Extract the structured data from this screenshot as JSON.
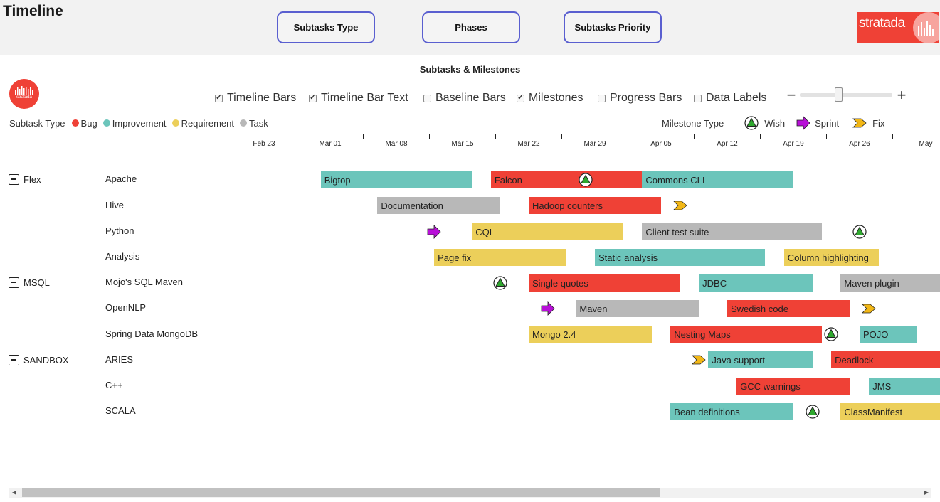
{
  "header": {
    "title": "Timeline",
    "buttons": [
      "Subtasks Type",
      "Phases",
      "Subtasks Priority"
    ],
    "brand": "stratada"
  },
  "chart_title": "Subtasks & Milestones",
  "small_logo_text": "stratada",
  "options": [
    {
      "label": "Timeline Bars",
      "checked": true
    },
    {
      "label": "Timeline Bar Text",
      "checked": true
    },
    {
      "label": "Baseline Bars",
      "checked": false
    },
    {
      "label": "Milestones",
      "checked": true
    },
    {
      "label": "Progress Bars",
      "checked": false
    },
    {
      "label": "Data Labels",
      "checked": false
    }
  ],
  "zoom": {
    "minus": "−",
    "plus": "+",
    "level": 0.43
  },
  "legend": {
    "title": "Subtask Type",
    "items": [
      {
        "label": "Bug",
        "color": "#ef4136"
      },
      {
        "label": "Improvement",
        "color": "#6cc5bb"
      },
      {
        "label": "Requirement",
        "color": "#eccf5a"
      },
      {
        "label": "Task",
        "color": "#b8b8b8"
      }
    ]
  },
  "milestone_legend": {
    "title": "Milestone Type",
    "items": [
      {
        "label": "Wish",
        "icon": "wish-triangle-icon"
      },
      {
        "label": "Sprint",
        "icon": "sprint-arrow-icon"
      },
      {
        "label": "Fix",
        "icon": "fix-chevron-icon"
      }
    ]
  },
  "colors": {
    "Bug": "#ef4136",
    "Improvement": "#6cc5bb",
    "Requirement": "#eccf5a",
    "Task": "#b8b8b8"
  },
  "axis": {
    "ticks": [
      "Feb 23",
      "Mar 01",
      "Mar 08",
      "Mar 15",
      "Mar 22",
      "Mar 29",
      "Apr 05",
      "Apr 12",
      "Apr 19",
      "Apr 26",
      "May"
    ]
  },
  "groups": [
    {
      "label": "Flex",
      "row": 0
    },
    {
      "label": "MSQL",
      "row": 4
    },
    {
      "label": "SANDBOX",
      "row": 7
    }
  ],
  "rows": [
    "Apache",
    "Hive",
    "Python",
    "Analysis",
    "Mojo's SQL Maven",
    "OpenNLP",
    "Spring Data MongoDB",
    "ARIES",
    "C++",
    "SCALA"
  ],
  "tasks": [
    {
      "row": 0,
      "label": "Bigtop",
      "type": "Improvement",
      "start": "Feb 29",
      "end": "Mar 16"
    },
    {
      "row": 0,
      "label": "Falcon",
      "type": "Bug",
      "start": "Mar 18",
      "end": "Apr 03"
    },
    {
      "row": 0,
      "label": "Commons CLI",
      "type": "Improvement",
      "start": "Apr 03",
      "end": "Apr 19"
    },
    {
      "row": 1,
      "label": "Documentation",
      "type": "Task",
      "start": "Mar 06",
      "end": "Mar 19"
    },
    {
      "row": 1,
      "label": "Hadoop counters",
      "type": "Bug",
      "start": "Mar 22",
      "end": "Apr 05"
    },
    {
      "row": 2,
      "label": "CQL",
      "type": "Requirement",
      "start": "Mar 16",
      "end": "Apr 01"
    },
    {
      "row": 2,
      "label": "Client test suite",
      "type": "Task",
      "start": "Apr 03",
      "end": "Apr 22"
    },
    {
      "row": 3,
      "label": "Page fix",
      "type": "Requirement",
      "start": "Mar 12",
      "end": "Mar 26"
    },
    {
      "row": 3,
      "label": "Static analysis",
      "type": "Improvement",
      "start": "Mar 29",
      "end": "Apr 16"
    },
    {
      "row": 3,
      "label": "Column highlighting",
      "type": "Requirement",
      "start": "Apr 18",
      "end": "Apr 28"
    },
    {
      "row": 4,
      "label": "Single quotes",
      "type": "Bug",
      "start": "Mar 22",
      "end": "Apr 07"
    },
    {
      "row": 4,
      "label": "JDBC",
      "type": "Improvement",
      "start": "Apr 09",
      "end": "Apr 21"
    },
    {
      "row": 4,
      "label": "Maven plugin",
      "type": "Task",
      "start": "Apr 24",
      "end": "May 05"
    },
    {
      "row": 5,
      "label": "Maven",
      "type": "Task",
      "start": "Mar 27",
      "end": "Apr 09"
    },
    {
      "row": 5,
      "label": "Swedish code",
      "type": "Bug",
      "start": "Apr 12",
      "end": "Apr 25"
    },
    {
      "row": 6,
      "label": "Mongo 2.4",
      "type": "Requirement",
      "start": "Mar 22",
      "end": "Apr 04"
    },
    {
      "row": 6,
      "label": "Nesting Maps",
      "type": "Bug",
      "start": "Apr 06",
      "end": "Apr 22"
    },
    {
      "row": 6,
      "label": "POJO",
      "type": "Improvement",
      "start": "Apr 26",
      "end": "May 02"
    },
    {
      "row": 7,
      "label": "Java support",
      "type": "Improvement",
      "start": "Apr 10",
      "end": "Apr 21"
    },
    {
      "row": 7,
      "label": "Deadlock",
      "type": "Bug",
      "start": "Apr 23",
      "end": "May 05"
    },
    {
      "row": 8,
      "label": "GCC warnings",
      "type": "Bug",
      "start": "Apr 13",
      "end": "Apr 25"
    },
    {
      "row": 8,
      "label": "JMS",
      "type": "Improvement",
      "start": "Apr 27",
      "end": "May 05"
    },
    {
      "row": 9,
      "label": "Bean definitions",
      "type": "Improvement",
      "start": "Apr 06",
      "end": "Apr 19"
    },
    {
      "row": 9,
      "label": "ClassManifest",
      "type": "Requirement",
      "start": "Apr 24",
      "end": "May 05"
    }
  ],
  "milestones": [
    {
      "row": 0,
      "type": "Wish",
      "date": "Mar 28"
    },
    {
      "row": 1,
      "type": "Fix",
      "date": "Apr 07"
    },
    {
      "row": 2,
      "type": "Sprint",
      "date": "Mar 12"
    },
    {
      "row": 2,
      "type": "Wish",
      "date": "Apr 26"
    },
    {
      "row": 4,
      "type": "Wish",
      "date": "Mar 19"
    },
    {
      "row": 5,
      "type": "Sprint",
      "date": "Mar 24"
    },
    {
      "row": 5,
      "type": "Fix",
      "date": "Apr 27"
    },
    {
      "row": 6,
      "type": "Wish",
      "date": "Apr 23"
    },
    {
      "row": 7,
      "type": "Fix",
      "date": "Apr 09"
    },
    {
      "row": 9,
      "type": "Wish",
      "date": "Apr 21"
    }
  ],
  "scrollbar": {
    "left_arrow": "◀",
    "right_arrow": "▶",
    "position": 0.0,
    "visible_fraction": 0.69
  }
}
